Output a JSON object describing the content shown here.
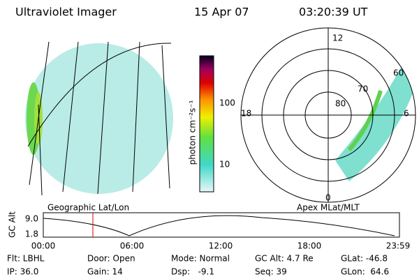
{
  "header": {
    "title": "Ultraviolet Imager",
    "date": "15 Apr 07",
    "time": "03:20:39 UT"
  },
  "colorbar": {
    "label": "photon cm⁻²s⁻¹",
    "ticks": [
      "100",
      "10"
    ]
  },
  "left_panel": {
    "caption": "Geographic Lat/Lon"
  },
  "right_panel": {
    "caption": "Apex MLat/MLT",
    "mlt_labels": [
      "12",
      "18",
      "6",
      "0"
    ],
    "lat_labels": [
      "60",
      "70",
      "80"
    ]
  },
  "timeline": {
    "y_label": "GC Alt",
    "y_ticks": [
      "9.0",
      "1.8"
    ],
    "x_ticks": [
      "00:00",
      "06:00",
      "12:00",
      "18:00",
      "23:59"
    ]
  },
  "footer": {
    "rows": [
      [
        "Flt: LBHL",
        "Door: Open",
        "Mode: Normal",
        "GC Alt: 4.7 Re",
        "GLat: -46.8"
      ],
      [
        "IP: 36.0",
        "Gain: 14",
        "Dsp:   -9.1",
        "Seq: 39",
        "GLon:  64.6"
      ]
    ]
  }
}
